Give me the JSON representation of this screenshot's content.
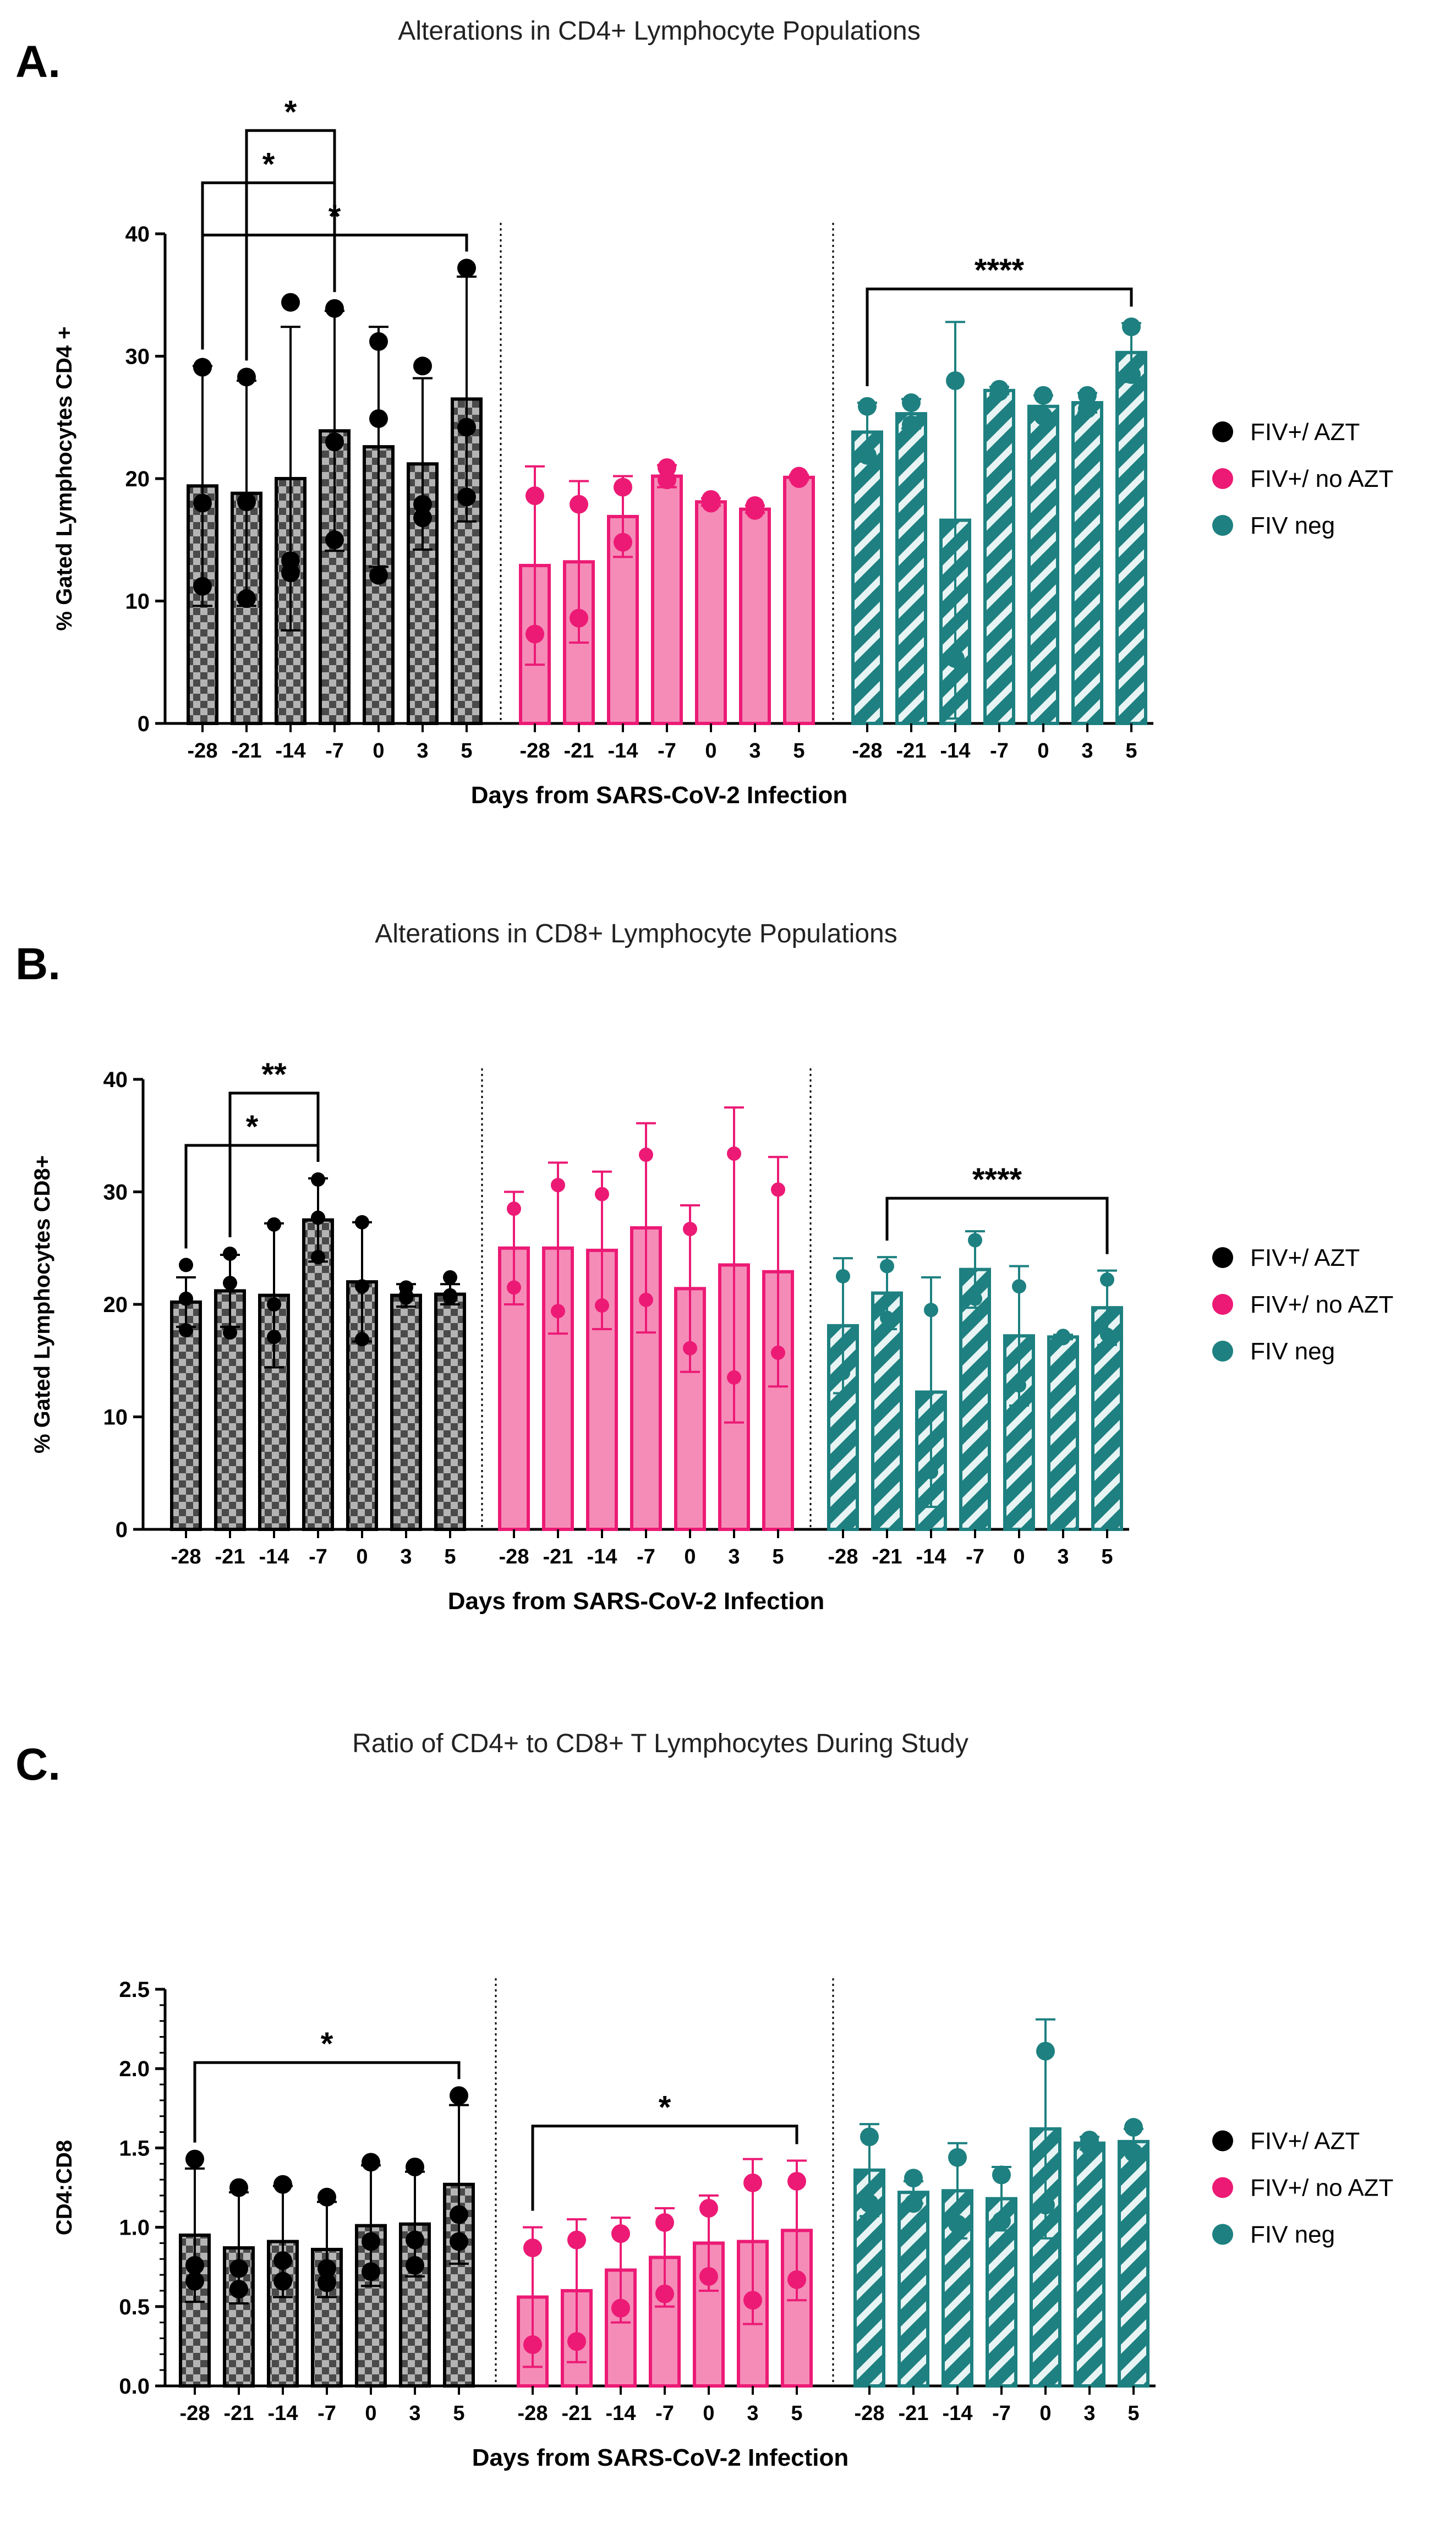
{
  "colors": {
    "azt": "#000000",
    "noazt": "#ec1a75",
    "noazt_fill": "#f58cb8",
    "neg": "#1e8080",
    "neg_fill": "#6fb4b4"
  },
  "legend": {
    "azt": "FIV+/ AZT",
    "noazt": "FIV+/ no AZT",
    "neg": "FIV neg"
  },
  "chart_data": [
    {
      "panel": "A.",
      "type": "bar",
      "title": "Alterations in CD4+ Lymphocyte Populations",
      "xlabel": "Days from SARS-CoV-2 Infection",
      "ylabel": "% Gated Lymphocytes CD4 +",
      "ylim": [
        0,
        40
      ],
      "yticks": [
        0,
        10,
        20,
        30,
        40
      ],
      "ytick_labels": [
        "0",
        "10",
        "20",
        "30",
        "40"
      ],
      "categories": [
        "-28",
        "-21",
        "-14",
        "-7",
        "0",
        "3",
        "5"
      ],
      "series": [
        {
          "name": "FIV+/ AZT",
          "values": [
            19.4,
            18.8,
            20.0,
            23.9,
            22.6,
            21.2,
            26.5
          ],
          "err": [
            9.8,
            9.2,
            12.4,
            9.8,
            9.8,
            7.0,
            10.0
          ],
          "points": [
            [
              29.1,
              18.0,
              11.2
            ],
            [
              28.3,
              18.1,
              10.2
            ],
            [
              34.4,
              13.3,
              12.3
            ],
            [
              33.9,
              23.0,
              15.0
            ],
            [
              31.2,
              24.9,
              12.1
            ],
            [
              29.2,
              17.9,
              16.8
            ],
            [
              37.2,
              24.2,
              18.5
            ]
          ]
        },
        {
          "name": "FIV+/ no AZT",
          "values": [
            12.9,
            13.2,
            16.9,
            20.2,
            18.1,
            17.5,
            20.1
          ],
          "err": [
            8.1,
            6.6,
            3.3,
            0.9,
            0.3,
            0.3,
            0.2
          ],
          "points": [
            [
              18.6,
              7.3
            ],
            [
              17.9,
              8.6
            ],
            [
              19.3,
              14.8
            ],
            [
              20.9,
              19.9
            ],
            [
              18.3,
              18.0
            ],
            [
              17.8,
              17.4
            ],
            [
              20.2,
              20.0
            ]
          ]
        },
        {
          "name": "FIV neg",
          "values": [
            23.8,
            25.3,
            16.6,
            27.2,
            25.9,
            26.2,
            30.3
          ],
          "err": [
            2.4,
            1.2,
            16.2,
            0.3,
            0.9,
            0.8,
            2.4
          ],
          "points": [
            [
              25.9,
              21.9
            ],
            [
              26.2,
              24.4
            ],
            [
              28.0,
              5.3
            ],
            [
              27.3,
              27.1
            ],
            [
              26.8,
              25.1
            ],
            [
              26.8,
              25.7
            ],
            [
              32.4,
              28.5
            ]
          ]
        }
      ],
      "comparisons": [
        {
          "group": 0,
          "from": "-28",
          "to": "5",
          "label": "*"
        },
        {
          "group": 0,
          "from": "-28",
          "to": "-7",
          "label": "*"
        },
        {
          "group": 0,
          "from": "-21",
          "to": "-7",
          "label": "*"
        },
        {
          "group": 2,
          "from": "-28",
          "to": "5",
          "label": "****"
        }
      ]
    },
    {
      "panel": "B.",
      "type": "bar",
      "title": "Alterations in CD8+ Lymphocyte Populations",
      "xlabel": "Days from SARS-CoV-2 Infection",
      "ylabel": "% Gated Lymphocytes CD8+",
      "ylim": [
        0,
        40
      ],
      "yticks": [
        0,
        10,
        20,
        30,
        40
      ],
      "ytick_labels": [
        "0",
        "10",
        "20",
        "30",
        "40"
      ],
      "categories": [
        "-28",
        "-21",
        "-14",
        "-7",
        "0",
        "3",
        "5"
      ],
      "series": [
        {
          "name": "FIV+/ AZT",
          "values": [
            20.2,
            21.2,
            20.8,
            27.5,
            22.0,
            20.8,
            20.9
          ],
          "err": [
            2.2,
            3.2,
            6.4,
            3.7,
            5.3,
            1.0,
            0.9
          ],
          "points": [
            [
              23.5,
              20.5,
              17.7
            ],
            [
              24.5,
              21.9,
              17.5
            ],
            [
              27.1,
              20.0,
              17.1
            ],
            [
              31.1,
              27.7,
              24.2
            ],
            [
              27.3,
              21.6,
              16.9
            ],
            [
              21.5,
              20.8,
              20.6
            ],
            [
              22.4,
              20.8,
              20.6
            ]
          ]
        },
        {
          "name": "FIV+/ no AZT",
          "values": [
            25.0,
            25.0,
            24.8,
            26.8,
            21.4,
            23.5,
            22.9
          ],
          "err": [
            5.0,
            7.6,
            7.0,
            9.3,
            7.4,
            14.0,
            10.2
          ],
          "points": [
            [
              28.5,
              21.5
            ],
            [
              30.6,
              19.4
            ],
            [
              29.8,
              19.9
            ],
            [
              33.3,
              20.4
            ],
            [
              26.7,
              16.1
            ],
            [
              33.4,
              13.5
            ],
            [
              30.2,
              15.7
            ]
          ]
        },
        {
          "name": "FIV neg",
          "values": [
            18.1,
            21.0,
            12.2,
            23.1,
            17.2,
            17.1,
            19.7
          ],
          "err": [
            6.0,
            3.2,
            10.2,
            3.4,
            6.2,
            0.2,
            3.3
          ],
          "points": [
            [
              22.5,
              13.9
            ],
            [
              23.4,
              18.8
            ],
            [
              19.5,
              5.1
            ],
            [
              25.7,
              20.5
            ],
            [
              21.6,
              12.8
            ],
            [
              17.2,
              17.0
            ],
            [
              22.2,
              17.3
            ]
          ]
        }
      ],
      "comparisons": [
        {
          "group": 0,
          "from": "-28",
          "to": "-7",
          "label": "*"
        },
        {
          "group": 0,
          "from": "-21",
          "to": "-7",
          "label": "**"
        },
        {
          "group": 2,
          "from": "-21",
          "to": "5",
          "label": "****"
        }
      ]
    },
    {
      "panel": "C.",
      "type": "bar",
      "title": "Ratio of CD4+ to CD8+ T Lymphocytes During Study",
      "xlabel": "Days from SARS-CoV-2 Infection",
      "ylabel": "CD4:CD8",
      "ylim": [
        0,
        2.5
      ],
      "yticks": [
        0,
        0.5,
        1.0,
        1.5,
        2.0,
        2.5
      ],
      "ytick_labels": [
        "0.0",
        "0.5",
        "1.0",
        "1.5",
        "2.0",
        "2.5"
      ],
      "categories": [
        "-28",
        "-21",
        "-14",
        "-7",
        "0",
        "3",
        "5"
      ],
      "series": [
        {
          "name": "FIV+/ AZT",
          "values": [
            0.95,
            0.87,
            0.91,
            0.86,
            1.01,
            1.02,
            1.27
          ],
          "err": [
            0.42,
            0.35,
            0.35,
            0.3,
            0.38,
            0.33,
            0.5
          ],
          "points": [
            [
              1.43,
              0.76,
              0.66
            ],
            [
              1.25,
              0.74,
              0.61
            ],
            [
              1.27,
              0.79,
              0.66
            ],
            [
              1.19,
              0.74,
              0.65
            ],
            [
              1.41,
              0.91,
              0.72
            ],
            [
              1.38,
              0.92,
              0.76
            ],
            [
              1.83,
              1.08,
              0.91
            ]
          ]
        },
        {
          "name": "FIV+/ no AZT",
          "values": [
            0.56,
            0.6,
            0.73,
            0.81,
            0.9,
            0.91,
            0.98
          ],
          "err": [
            0.44,
            0.45,
            0.33,
            0.31,
            0.3,
            0.52,
            0.44
          ],
          "points": [
            [
              0.87,
              0.26
            ],
            [
              0.92,
              0.28
            ],
            [
              0.96,
              0.49
            ],
            [
              1.03,
              0.58
            ],
            [
              1.12,
              0.69
            ],
            [
              1.28,
              0.54
            ],
            [
              1.29,
              0.67
            ]
          ]
        },
        {
          "name": "FIV neg",
          "values": [
            1.36,
            1.22,
            1.23,
            1.18,
            1.62,
            1.53,
            1.54
          ],
          "err": [
            0.29,
            0.07,
            0.3,
            0.2,
            0.69,
            0.04,
            0.08
          ],
          "points": [
            [
              1.57,
              1.15
            ],
            [
              1.31,
              1.15
            ],
            [
              1.44,
              1.02
            ],
            [
              1.33,
              1.04
            ],
            [
              2.11,
              1.14
            ],
            [
              1.55,
              1.51
            ],
            [
              1.63,
              1.47
            ]
          ]
        }
      ],
      "comparisons": [
        {
          "group": 0,
          "from": "-28",
          "to": "5",
          "label": "*"
        },
        {
          "group": 1,
          "from": "-28",
          "to": "5",
          "label": "*"
        }
      ]
    }
  ]
}
